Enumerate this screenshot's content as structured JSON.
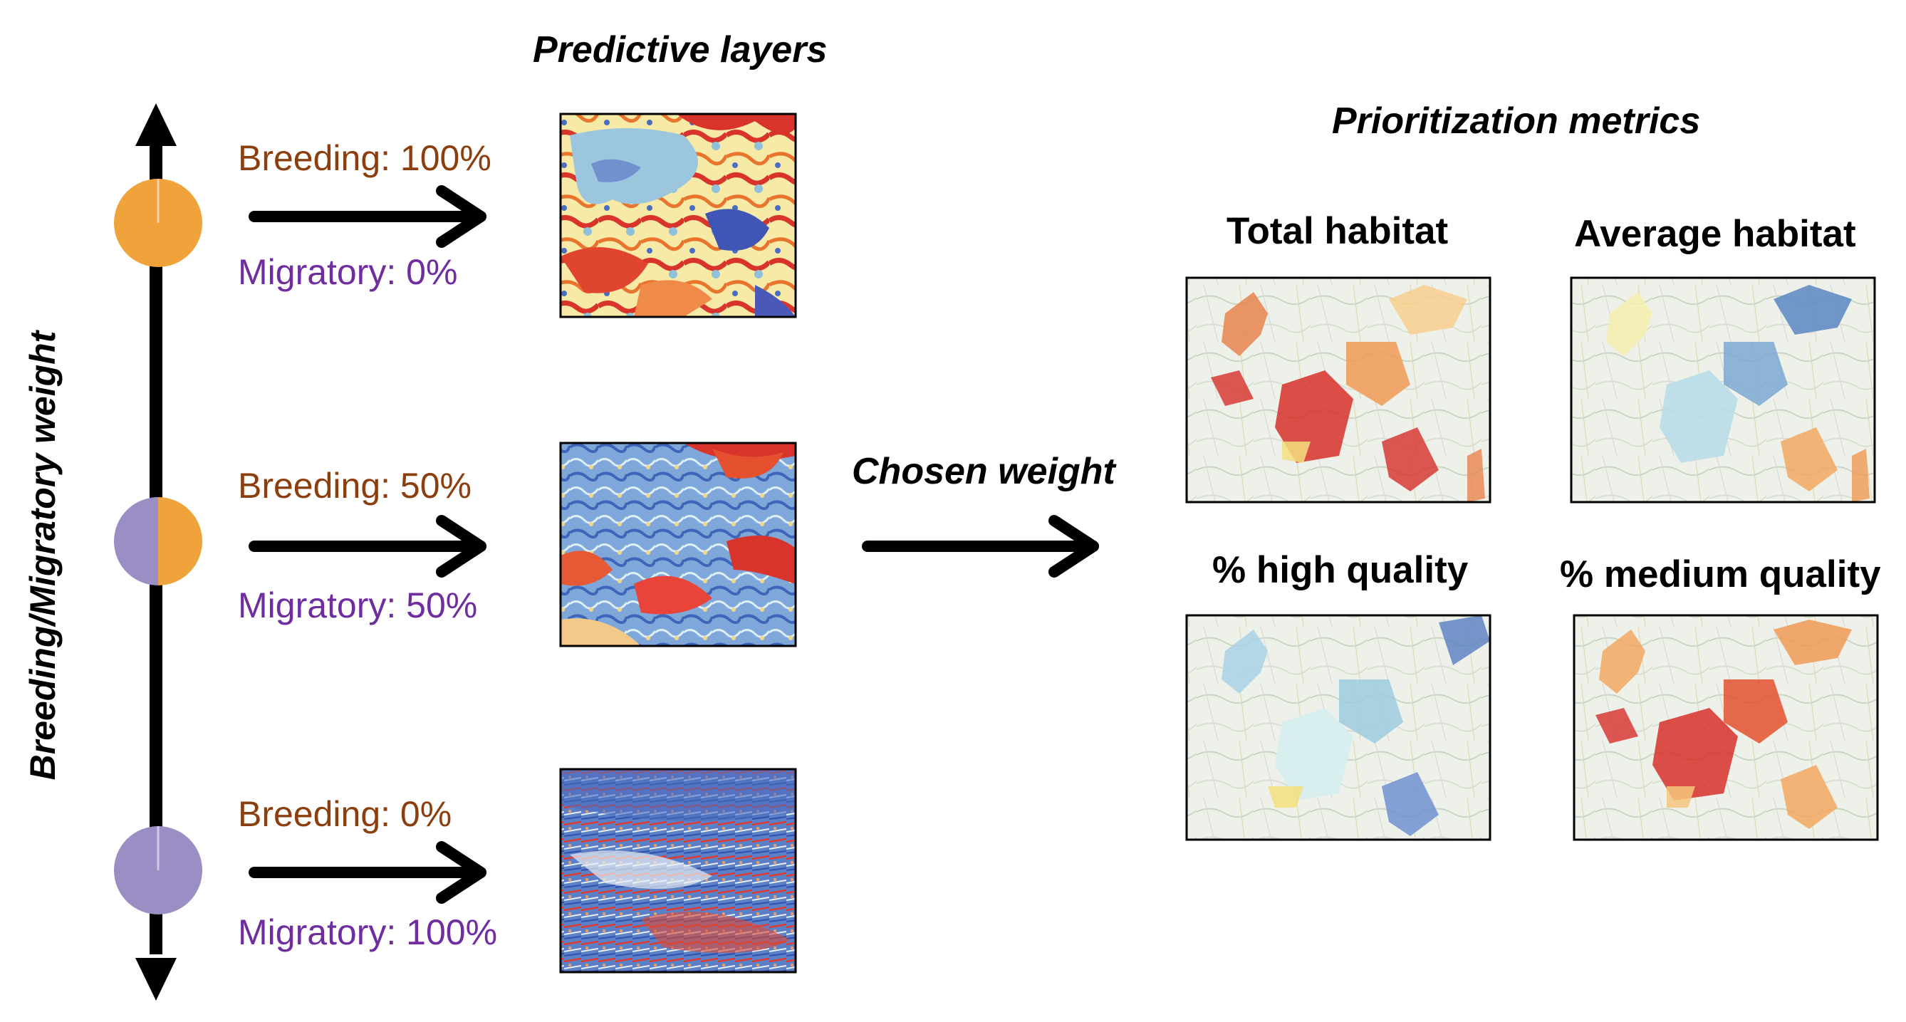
{
  "titles": {
    "predictive_layers": "Predictive layers",
    "prioritization_metrics": "Prioritization metrics",
    "chosen_weight": "Chosen weight",
    "axis_label": "Breeding/Migratory weight"
  },
  "weights": [
    {
      "breeding": "Breeding: 100%",
      "migratory": "Migratory: 0%",
      "breeding_fraction": 1.0
    },
    {
      "breeding": "Breeding: 50%",
      "migratory": "Migratory: 50%",
      "breeding_fraction": 0.5
    },
    {
      "breeding": "Breeding: 0%",
      "migratory": "Migratory: 100%",
      "breeding_fraction": 0.0
    }
  ],
  "metrics": [
    {
      "label": "Total habitat"
    },
    {
      "label": "Average habitat"
    },
    {
      "label": "% high quality"
    },
    {
      "label": "% medium quality"
    }
  ],
  "colors": {
    "breeding": "#F0A33A",
    "migratory": "#9B8EC4",
    "breeding_text": "#8B3E0E",
    "migratory_text": "#6F2DA0",
    "palette_red": "#D7302A",
    "palette_orange": "#F5A35A",
    "palette_yellow": "#FFF3B0",
    "palette_lightblue": "#A6D0E4",
    "palette_blue": "#3B62B5"
  }
}
